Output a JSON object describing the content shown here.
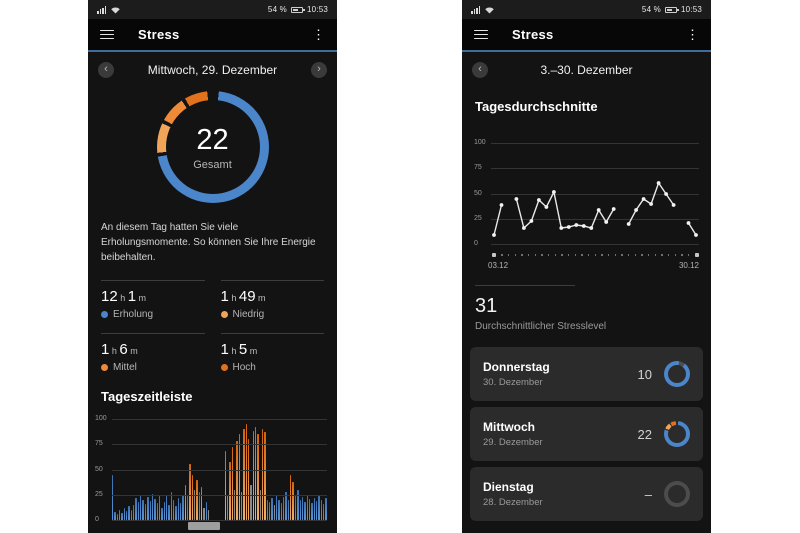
{
  "colors": {
    "blue": "#4a86c9",
    "orange_light": "#f0a55a",
    "orange_mid": "#ee8a38",
    "orange_dark": "#e2711d",
    "accent_line": "#3f6c99"
  },
  "status_bar": {
    "battery_pct": "54 %",
    "time": "10:53"
  },
  "icons": {
    "menu_glyph": "≡",
    "kebab_glyph": "⋮",
    "prev_glyph": "‹",
    "next_glyph": "›",
    "timeline": [
      "sleep-icon",
      "alarm-icon",
      "walk-icon"
    ]
  },
  "left": {
    "title": "Stress",
    "date_label": "Mittwoch, 29. Dezember",
    "gauge_value": "22",
    "gauge_label": "Gesamt",
    "description": "An diesem Tag hatten Sie viele Erholungsmomente. So können Sie Ihre Energie beibehalten.",
    "stats": [
      {
        "v1": "12",
        "u1": "h",
        "v2": "1",
        "u2": "m",
        "label": "Erholung",
        "color": "#4a86c9"
      },
      {
        "v1": "1",
        "u1": "h",
        "v2": "49",
        "u2": "m",
        "label": "Niedrig",
        "color": "#f0a55a"
      },
      {
        "v1": "1",
        "u1": "h",
        "v2": "6",
        "u2": "m",
        "label": "Mittel",
        "color": "#ee8a38"
      },
      {
        "v1": "1",
        "u1": "h",
        "v2": "5",
        "u2": "m",
        "label": "Hoch",
        "color": "#e2711d"
      }
    ],
    "timeline_title": "Tageszeitleiste",
    "chart_data": {
      "type": "bar",
      "title": "Tageszeitleiste",
      "ylim": [
        0,
        100
      ],
      "yticks": [
        100,
        75,
        50,
        25,
        0
      ],
      "values": [
        45,
        8,
        6,
        10,
        7,
        12,
        9,
        14,
        10,
        15,
        22,
        18,
        25,
        20,
        16,
        23,
        19,
        26,
        21,
        17,
        24,
        12,
        18,
        25,
        15,
        28,
        20,
        14,
        22,
        17,
        25,
        35,
        25,
        55,
        45,
        30,
        40,
        28,
        33,
        12,
        18,
        10,
        0,
        0,
        0,
        0,
        0,
        0,
        68,
        25,
        57,
        72,
        30,
        78,
        85,
        28,
        90,
        95,
        80,
        35,
        88,
        92,
        85,
        30,
        90,
        87,
        20,
        18,
        22,
        15,
        25,
        20,
        17,
        23,
        28,
        20,
        45,
        38,
        25,
        30,
        20,
        23,
        18,
        25,
        21,
        17,
        22,
        19,
        24,
        20,
        16,
        22
      ],
      "colors": "bbbbbbbbbbbbbbbbbbbbbbbbbbbbbbboboogobogbg......ogoogoogooogooogoobbbgbbbbbboobbbbbbbbbbbbbb",
      "legend": "b=Erholung(blau) o=Stress(orange) g=unbestimmt(grau) .=keine Daten"
    }
  },
  "right": {
    "title": "Stress",
    "date_label": "3.–30. Dezember",
    "section_title": "Tagesdurchschnitte",
    "avg_value": "31",
    "avg_label": "Durchschnittlicher Stresslevel",
    "chart_data": {
      "type": "line",
      "title": "Tagesdurchschnitte",
      "ylim": [
        0,
        100
      ],
      "yticks": [
        100,
        75,
        50,
        25,
        0
      ],
      "x_start_label": "03.12",
      "x_end_label": "30.12",
      "x_days": "3..30 Dezember",
      "values": [
        10,
        40,
        null,
        46,
        17,
        24,
        45,
        38,
        53,
        17,
        18,
        20,
        19,
        17,
        35,
        23,
        36,
        null,
        21,
        35,
        46,
        41,
        62,
        51,
        40,
        null,
        22,
        10
      ]
    },
    "list": [
      {
        "day": "Donnerstag",
        "date": "30. Dezember",
        "value": "10",
        "ring": "low"
      },
      {
        "day": "Mittwoch",
        "date": "29. Dezember",
        "value": "22",
        "ring": "mid"
      },
      {
        "day": "Dienstag",
        "date": "28. Dezember",
        "value": "–",
        "ring": "empty"
      }
    ]
  }
}
